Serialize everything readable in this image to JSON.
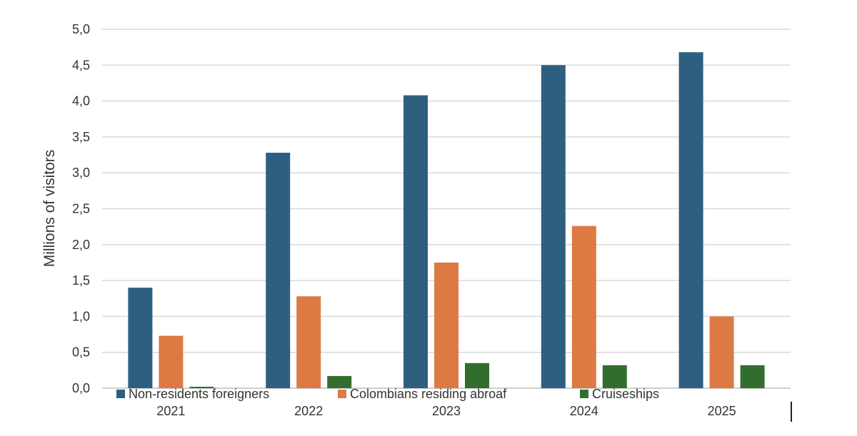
{
  "chart_data": {
    "type": "bar",
    "categories": [
      "2021",
      "2022",
      "2023",
      "2024",
      "2025"
    ],
    "series": [
      {
        "name": "Non-residents foreigners",
        "color": "#2e5f80",
        "values": [
          1.4,
          3.28,
          4.08,
          4.5,
          4.68
        ]
      },
      {
        "name": "Colombians residing abroaf",
        "color": "#dd7a43",
        "values": [
          0.73,
          1.28,
          1.75,
          2.26,
          1.0
        ]
      },
      {
        "name": "Cruiseships",
        "color": "#336d2e",
        "values": [
          0.02,
          0.17,
          0.35,
          0.32,
          0.32
        ]
      }
    ],
    "ylabel": "Millions of visitors",
    "ylim": [
      0,
      5.0
    ],
    "yticks": [
      "0,0",
      "0,5",
      "1,0",
      "1,5",
      "2,0",
      "2,5",
      "3,0",
      "3,5",
      "4,0",
      "4,5",
      "5,0"
    ],
    "grid": true,
    "legend_position": "bottom"
  }
}
